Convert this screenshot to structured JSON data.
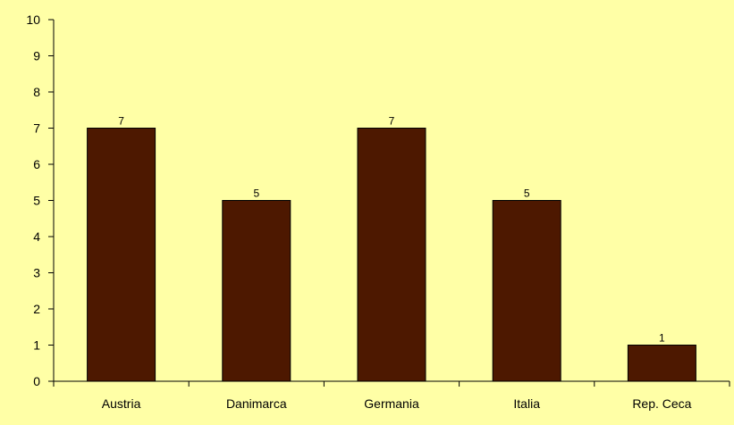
{
  "chart_data": {
    "type": "bar",
    "categories": [
      "Austria",
      "Danimarca",
      "Germania",
      "Italia",
      "Rep. Ceca"
    ],
    "values": [
      7,
      5,
      7,
      5,
      1
    ],
    "data_labels": [
      "7",
      "5",
      "7",
      "5",
      "1"
    ],
    "title": "",
    "xlabel": "",
    "ylabel": "",
    "ylim": [
      0,
      10
    ],
    "yticks": [
      "0",
      "1",
      "2",
      "3",
      "4",
      "5",
      "6",
      "7",
      "8",
      "9",
      "10"
    ],
    "grid": false,
    "legend": "none",
    "colors": {
      "background": "#FFFFA6",
      "bar": "#4D1800",
      "axis": "#000000"
    }
  }
}
